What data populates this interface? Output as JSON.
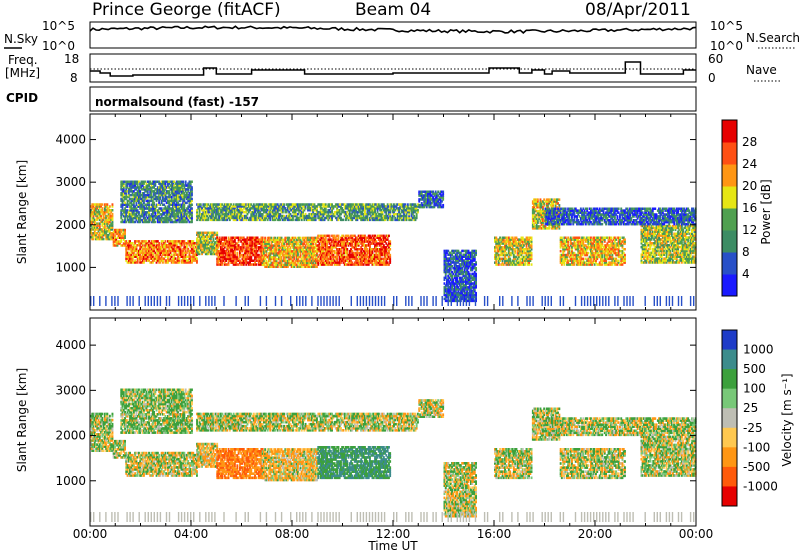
{
  "header": {
    "station": "Prince George (fitACF)",
    "beam": "Beam 04",
    "date": "08/Apr/2011"
  },
  "noise_panel": {
    "left_label": "N.Sky",
    "right_label": "N.Search",
    "left_ticks": [
      "10^5",
      "10^0"
    ],
    "right_ticks": [
      "10^5",
      "10^0"
    ]
  },
  "freq_panel": {
    "left_label_line1": "Freq.",
    "left_label_line2": "[MHz]",
    "right_label": "Nave",
    "left_ticks": [
      "18",
      "8"
    ],
    "right_ticks": [
      "60",
      "0"
    ],
    "freq_steps": [
      [
        0.0,
        12.5
      ],
      [
        0.4,
        11.5
      ],
      [
        0.8,
        10.0
      ],
      [
        1.7,
        10.5
      ],
      [
        4.5,
        14.0
      ],
      [
        5.0,
        11.0
      ],
      [
        6.4,
        13.0
      ],
      [
        8.5,
        11.0
      ],
      [
        12.0,
        11.5
      ],
      [
        15.8,
        14.0
      ],
      [
        17.0,
        11.5
      ],
      [
        17.5,
        13.0
      ],
      [
        18.0,
        11.0
      ],
      [
        18.3,
        12.5
      ],
      [
        19.0,
        11.5
      ],
      [
        21.2,
        17.0
      ],
      [
        21.8,
        11.0
      ],
      [
        23.5,
        13.0
      ]
    ]
  },
  "cpid": {
    "label": "CPID",
    "value": "normalsound (fast) -157"
  },
  "chart_data": [
    {
      "type": "heatmap",
      "ylabel": "Slant Range [km]",
      "xlabel": "",
      "x_range_hours": [
        0,
        24
      ],
      "ylim": [
        0,
        4600
      ],
      "yticks": [
        "1000",
        "2000",
        "3000",
        "4000"
      ],
      "xticks": [
        "00:00",
        "04:00",
        "08:00",
        "12:00",
        "16:00",
        "20:00",
        "00:00"
      ],
      "colorbar_label": "Power [dB]",
      "colorbar_ticks": [
        "28",
        "24",
        "20",
        "16",
        "12",
        "8",
        "4"
      ],
      "colorbar_range": [
        0,
        32
      ],
      "colors": [
        "#1a1aff",
        "#2850c8",
        "#3c8c64",
        "#50a050",
        "#e6e614",
        "#ff9614",
        "#ff5014",
        "#e60000"
      ]
    },
    {
      "type": "heatmap",
      "ylabel": "Slant Range [km]",
      "xlabel": "Time UT",
      "x_range_hours": [
        0,
        24
      ],
      "ylim": [
        0,
        4600
      ],
      "yticks": [
        "1000",
        "2000",
        "3000",
        "4000"
      ],
      "xticks": [
        "00:00",
        "04:00",
        "08:00",
        "12:00",
        "16:00",
        "20:00",
        "00:00"
      ],
      "colorbar_label": "Velocity [m s⁻¹]",
      "colorbar_ticks": [
        "1000",
        "500",
        "100",
        "25",
        "-25",
        "-100",
        "-500",
        "-1000"
      ],
      "colors": [
        "#1e3cc8",
        "#3c8c8c",
        "#3ca03c",
        "#78c878",
        "#bebeb4",
        "#ffc850",
        "#ff9614",
        "#ff5a0a",
        "#e60000"
      ]
    }
  ],
  "echo_regions": [
    {
      "t0": 0.0,
      "t1": 0.9,
      "r0": 1650,
      "r1": 2500,
      "p": 18,
      "v": 25
    },
    {
      "t0": 0.9,
      "t1": 1.4,
      "r0": 1500,
      "r1": 1900,
      "p": 22,
      "v": 25
    },
    {
      "t0": 1.4,
      "t1": 4.2,
      "r0": 1100,
      "r1": 1600,
      "p": 24,
      "v": 25
    },
    {
      "t0": 1.2,
      "t1": 4.0,
      "r0": 2050,
      "r1": 3000,
      "p": 10,
      "v": 100
    },
    {
      "t0": 4.2,
      "t1": 5.0,
      "r0": 1300,
      "r1": 1800,
      "p": 16,
      "v": -100
    },
    {
      "t0": 5.0,
      "t1": 6.8,
      "r0": 1050,
      "r1": 1700,
      "p": 27,
      "v": -500
    },
    {
      "t0": 6.8,
      "t1": 9.0,
      "r0": 1000,
      "r1": 1700,
      "p": 20,
      "v": -100
    },
    {
      "t0": 9.0,
      "t1": 11.9,
      "r0": 1050,
      "r1": 1750,
      "p": 26,
      "v": 500
    },
    {
      "t0": 4.2,
      "t1": 13.0,
      "r0": 2100,
      "r1": 2500,
      "p": 12,
      "v": 25
    },
    {
      "t0": 13.0,
      "t1": 14.0,
      "r0": 2400,
      "r1": 2800,
      "p": 8,
      "v": 25
    },
    {
      "t0": 14.0,
      "t1": 15.3,
      "r0": 200,
      "r1": 1400,
      "p": 6,
      "v": 25
    },
    {
      "t0": 16.0,
      "t1": 17.5,
      "r0": 1050,
      "r1": 1700,
      "p": 18,
      "v": 25
    },
    {
      "t0": 17.5,
      "t1": 18.6,
      "r0": 1900,
      "r1": 2600,
      "p": 18,
      "v": 25
    },
    {
      "t0": 18.6,
      "t1": 21.2,
      "r0": 1050,
      "r1": 1700,
      "p": 20,
      "v": 25
    },
    {
      "t0": 21.8,
      "t1": 24.0,
      "r0": 1100,
      "r1": 2000,
      "p": 16,
      "v": 25
    },
    {
      "t0": 18.0,
      "t1": 24.0,
      "r0": 2000,
      "r1": 2400,
      "p": 6,
      "v": 25
    }
  ]
}
